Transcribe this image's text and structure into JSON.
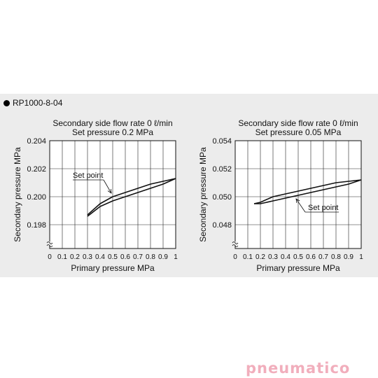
{
  "model_label": "RP1000-8-04",
  "brand_logo": "pneumatico",
  "brand_color": "#f1aebc",
  "chart_data": [
    {
      "type": "line",
      "title": "Secondary side flow rate 0 ℓ/min",
      "subtitle": "Set pressure 0.2 MPa",
      "xlabel": "Primary pressure MPa",
      "ylabel": "Secondary pressure MPa",
      "xlim": [
        0,
        1
      ],
      "ylim": [
        0.1963,
        0.204
      ],
      "x_ticks": [
        "0",
        "0.1",
        "0.2",
        "0.3",
        "0.4",
        "0.5",
        "0.6",
        "0.7",
        "0.8",
        "0.9",
        "1"
      ],
      "y_ticks": [
        {
          "value": 0.204,
          "label": "0.204"
        },
        {
          "value": 0.202,
          "label": "0.202"
        },
        {
          "value": 0.2,
          "label": "0.200"
        },
        {
          "value": 0.198,
          "label": "0.198"
        }
      ],
      "axis_break": true,
      "grid": true,
      "series": [
        {
          "x": [
            0.3,
            0.4,
            0.5,
            0.6,
            0.7,
            0.8,
            0.9,
            1.0
          ],
          "y": [
            0.1987,
            0.1995,
            0.2,
            0.2003,
            0.2006,
            0.2009,
            0.2011,
            0.2013
          ]
        },
        {
          "x": [
            0.3,
            0.4,
            0.5,
            0.6,
            0.7,
            0.8,
            0.9,
            1.0
          ],
          "y": [
            0.1986,
            0.1993,
            0.1997,
            0.2,
            0.2003,
            0.2006,
            0.2009,
            0.2013
          ]
        }
      ],
      "annotation": {
        "text": "Set point",
        "x": 0.5,
        "y": 0.2
      }
    },
    {
      "type": "line",
      "title": "Secondary side flow rate 0 ℓ/min",
      "subtitle": "Set pressure 0.05 MPa",
      "xlabel": "Primary pressure MPa",
      "ylabel": "Secondary pressure MPa",
      "xlim": [
        0,
        1
      ],
      "ylim": [
        0.0463,
        0.054
      ],
      "x_ticks": [
        "0",
        "0.1",
        "0.2",
        "0.3",
        "0.4",
        "0.5",
        "0.6",
        "0.7",
        "0.8",
        "0.9",
        "1"
      ],
      "y_ticks": [
        {
          "value": 0.054,
          "label": "0.054"
        },
        {
          "value": 0.052,
          "label": "0.052"
        },
        {
          "value": 0.05,
          "label": "0.050"
        },
        {
          "value": 0.048,
          "label": "0.048"
        }
      ],
      "axis_break": true,
      "grid": true,
      "series": [
        {
          "x": [
            0.15,
            0.2,
            0.3,
            0.4,
            0.5,
            0.6,
            0.7,
            0.8,
            0.9,
            1.0
          ],
          "y": [
            0.0495,
            0.0496,
            0.05,
            0.0502,
            0.0504,
            0.0506,
            0.0508,
            0.051,
            0.0511,
            0.0512
          ]
        },
        {
          "x": [
            0.15,
            0.2,
            0.3,
            0.4,
            0.5,
            0.6,
            0.7,
            0.8,
            0.9,
            1.0
          ],
          "y": [
            0.0495,
            0.0495,
            0.0497,
            0.0499,
            0.0501,
            0.0503,
            0.0505,
            0.0507,
            0.0509,
            0.0512
          ]
        }
      ],
      "annotation": {
        "text": "Set point",
        "x": 0.4,
        "y": 0.05
      }
    }
  ]
}
